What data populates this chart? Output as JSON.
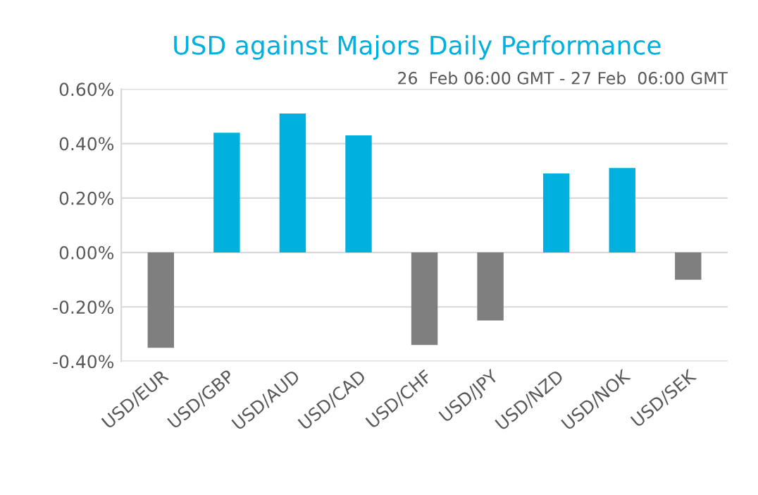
{
  "chart_data": {
    "type": "bar",
    "title": "USD against Majors Daily Performance",
    "subtitle": "26  Feb 06:00 GMT - 27 Feb  06:00 GMT",
    "categories": [
      "USD/EUR",
      "USD/GBP",
      "USD/AUD",
      "USD/CAD",
      "USD/CHF",
      "USD/JPY",
      "USD/NZD",
      "USD/NOK",
      "USD/SEK"
    ],
    "values": [
      -0.35,
      0.44,
      0.51,
      0.43,
      -0.34,
      -0.25,
      0.29,
      0.31,
      -0.1
    ],
    "colors": [
      "#7f7f7f",
      "#00b0de",
      "#00b0de",
      "#00b0de",
      "#7f7f7f",
      "#7f7f7f",
      "#00b0de",
      "#00b0de",
      "#7f7f7f"
    ],
    "ylim": [
      -0.4,
      0.6
    ],
    "yticks": [
      {
        "value": -0.4,
        "label": "-0.40%"
      },
      {
        "value": -0.2,
        "label": "-0.20%"
      },
      {
        "value": 0,
        "label": "0.00%"
      },
      {
        "value": 0.2,
        "label": "0.20%"
      },
      {
        "value": 0.4,
        "label": "0.40%"
      },
      {
        "value": 0.6,
        "label": "0.60%"
      }
    ],
    "grid": "y"
  }
}
